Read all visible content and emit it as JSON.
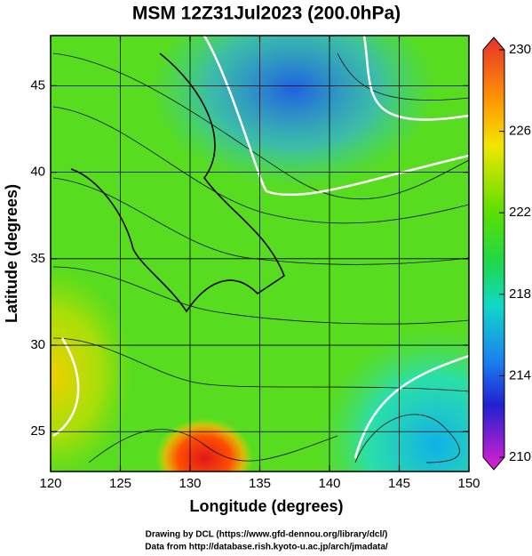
{
  "title": "MSM 12Z31Jul2023 (200.0hPa)",
  "map": {
    "xlabel": "Longitude (degrees)",
    "ylabel": "Latitude  (degrees)",
    "xlim": [
      120,
      150
    ],
    "ylim": [
      22.7,
      47.9
    ],
    "xticks": [
      120,
      125,
      130,
      135,
      140,
      145,
      150
    ],
    "yticks": [
      25,
      30,
      35,
      40,
      45
    ],
    "grid": true
  },
  "colorbar": {
    "lim": [
      210,
      230
    ],
    "ticks": [
      210,
      214,
      218,
      222,
      226,
      230
    ]
  },
  "credits": [
    "Drawing by DCL (https://www.gfd-dennou.org/library/dcl/)",
    "Data from http://database.rish.kyoto-u.ac.jp/arch/jmadata/"
  ]
}
